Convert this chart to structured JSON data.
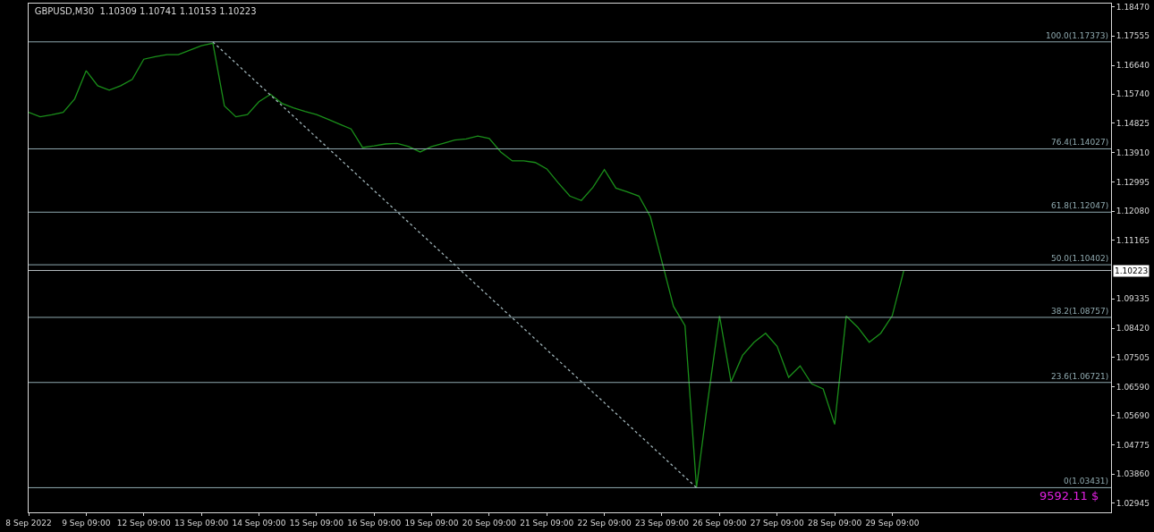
{
  "chart_data": {
    "type": "line",
    "title": "GBPUSD,M30  1.10309 1.10741 1.10153 1.10223",
    "categories": [
      "8 Sep 2022",
      null,
      null,
      null,
      null,
      "9 Sep 09:00",
      null,
      null,
      null,
      null,
      "12 Sep 09:00",
      null,
      null,
      null,
      null,
      "13 Sep 09:00",
      null,
      null,
      null,
      null,
      "14 Sep 09:00",
      null,
      null,
      null,
      null,
      "15 Sep 09:00",
      null,
      null,
      null,
      null,
      "16 Sep 09:00",
      null,
      null,
      null,
      null,
      "19 Sep 09:00",
      null,
      null,
      null,
      null,
      "20 Sep 09:00",
      null,
      null,
      null,
      null,
      "21 Sep 09:00",
      null,
      null,
      null,
      null,
      "22 Sep 09:00",
      null,
      null,
      null,
      null,
      "23 Sep 09:00",
      null,
      null,
      null,
      null,
      "26 Sep 09:00",
      null,
      null,
      null,
      null,
      "27 Sep 09:00",
      null,
      null,
      null,
      null,
      "28 Sep 09:00",
      null,
      null,
      null,
      null,
      "29 Sep 09:00",
      null,
      null,
      null,
      null,
      null,
      null,
      null,
      null,
      null,
      null,
      null,
      null,
      null,
      null,
      null,
      null,
      null,
      null,
      null
    ],
    "series": [
      {
        "color": "#1a8f1a",
        "values": [
          1.1517,
          1.1503,
          1.1509,
          1.1517,
          1.1559,
          1.1647,
          1.16,
          1.1586,
          1.16,
          1.162,
          1.1683,
          1.1691,
          1.1697,
          1.1697,
          1.1711,
          1.1725,
          1.1733,
          1.1537,
          1.1503,
          1.151,
          1.155,
          1.1573,
          1.1545,
          1.1531,
          1.152,
          1.151,
          1.1495,
          1.148,
          1.1465,
          1.1407,
          1.1412,
          1.1418,
          1.142,
          1.141,
          1.1393,
          1.141,
          1.142,
          1.143,
          1.1434,
          1.1443,
          1.1435,
          1.1393,
          1.1365,
          1.1365,
          1.136,
          1.134,
          1.1296,
          1.1255,
          1.1241,
          1.1282,
          1.1338,
          1.128,
          1.1268,
          1.1255,
          1.119,
          1.105,
          1.091,
          1.085,
          1.0343,
          1.062,
          1.088,
          1.0674,
          1.0757,
          1.0798,
          1.0826,
          1.0785,
          1.0688,
          1.0724,
          1.0668,
          1.0652,
          1.0541,
          1.088,
          1.0845,
          1.0798,
          1.0826,
          1.0881,
          1.1022,
          null,
          null,
          null,
          null,
          null,
          null,
          null,
          null,
          null,
          null,
          null,
          null,
          null,
          null,
          null,
          null,
          null,
          null
        ]
      },
      {
        "type": "line",
        "color": "#9fb3b8",
        "line_style": "dotted",
        "values": [
          null,
          null,
          null,
          null,
          null,
          null,
          null,
          null,
          null,
          null,
          null,
          null,
          null,
          null,
          null,
          null,
          1.1737,
          null,
          null,
          null,
          null,
          null,
          null,
          null,
          null,
          null,
          null,
          null,
          null,
          null,
          null,
          null,
          null,
          null,
          null,
          null,
          null,
          null,
          null,
          null,
          null,
          null,
          null,
          null,
          null,
          null,
          null,
          null,
          null,
          null,
          null,
          null,
          null,
          null,
          null,
          null,
          null,
          null,
          1.0343,
          null,
          null,
          null,
          null,
          null,
          null,
          null,
          null,
          null,
          null,
          null,
          null,
          null,
          null,
          null,
          null,
          null,
          null,
          null,
          null,
          null,
          null,
          null,
          null,
          null,
          null,
          null,
          null,
          null,
          null,
          null,
          null,
          null,
          null,
          null,
          null
        ]
      }
    ],
    "ylim": [
      1.0266,
      1.1857
    ],
    "yticks": [
      {
        "value": 1.1847,
        "label": "1.18470"
      },
      {
        "value": 1.17555,
        "label": "1.17555"
      },
      {
        "value": 1.1664,
        "label": "1.16640"
      },
      {
        "value": 1.1574,
        "label": "1.15740"
      },
      {
        "value": 1.14825,
        "label": "1.14825"
      },
      {
        "value": 1.1391,
        "label": "1.13910"
      },
      {
        "value": 1.12995,
        "label": "1.12995"
      },
      {
        "value": 1.1208,
        "label": "1.12080"
      },
      {
        "value": 1.11165,
        "label": "1.11165"
      },
      {
        "value": 1.09335,
        "label": "1.09335"
      },
      {
        "value": 1.0842,
        "label": "1.08420"
      },
      {
        "value": 1.07505,
        "label": "1.07505"
      },
      {
        "value": 1.0659,
        "label": "1.06590"
      },
      {
        "value": 1.0569,
        "label": "1.05690"
      },
      {
        "value": 1.04775,
        "label": "1.04775"
      },
      {
        "value": 1.0386,
        "label": "1.03860"
      },
      {
        "value": 1.02945,
        "label": "1.02945"
      }
    ],
    "ref_lines": [
      {
        "axis": "y",
        "value": 1.17373,
        "label": "100.0(1.17373)",
        "color": "#8fa9af"
      },
      {
        "axis": "y",
        "value": 1.14027,
        "label": "76.4(1.14027)",
        "color": "#8fa9af"
      },
      {
        "axis": "y",
        "value": 1.12047,
        "label": "61.8(1.12047)",
        "color": "#8fa9af"
      },
      {
        "axis": "y",
        "value": 1.10402,
        "label": "50.0(1.10402)",
        "color": "#8fa9af"
      },
      {
        "axis": "y",
        "value": 1.10223,
        "label": "1.10223",
        "color": "#b4bcc0"
      },
      {
        "axis": "y",
        "value": 1.08757,
        "label": "38.2(1.08757)",
        "color": "#8fa9af"
      },
      {
        "axis": "y",
        "value": 1.06721,
        "label": "23.6(1.06721)",
        "color": "#8fa9af"
      },
      {
        "axis": "y",
        "value": 1.03431,
        "label": "0(1.03431)",
        "color": "#8fa9af"
      }
    ],
    "annotations": [
      "9592.11 $"
    ],
    "grid": false,
    "marker": "none",
    "line_style": "solid"
  }
}
